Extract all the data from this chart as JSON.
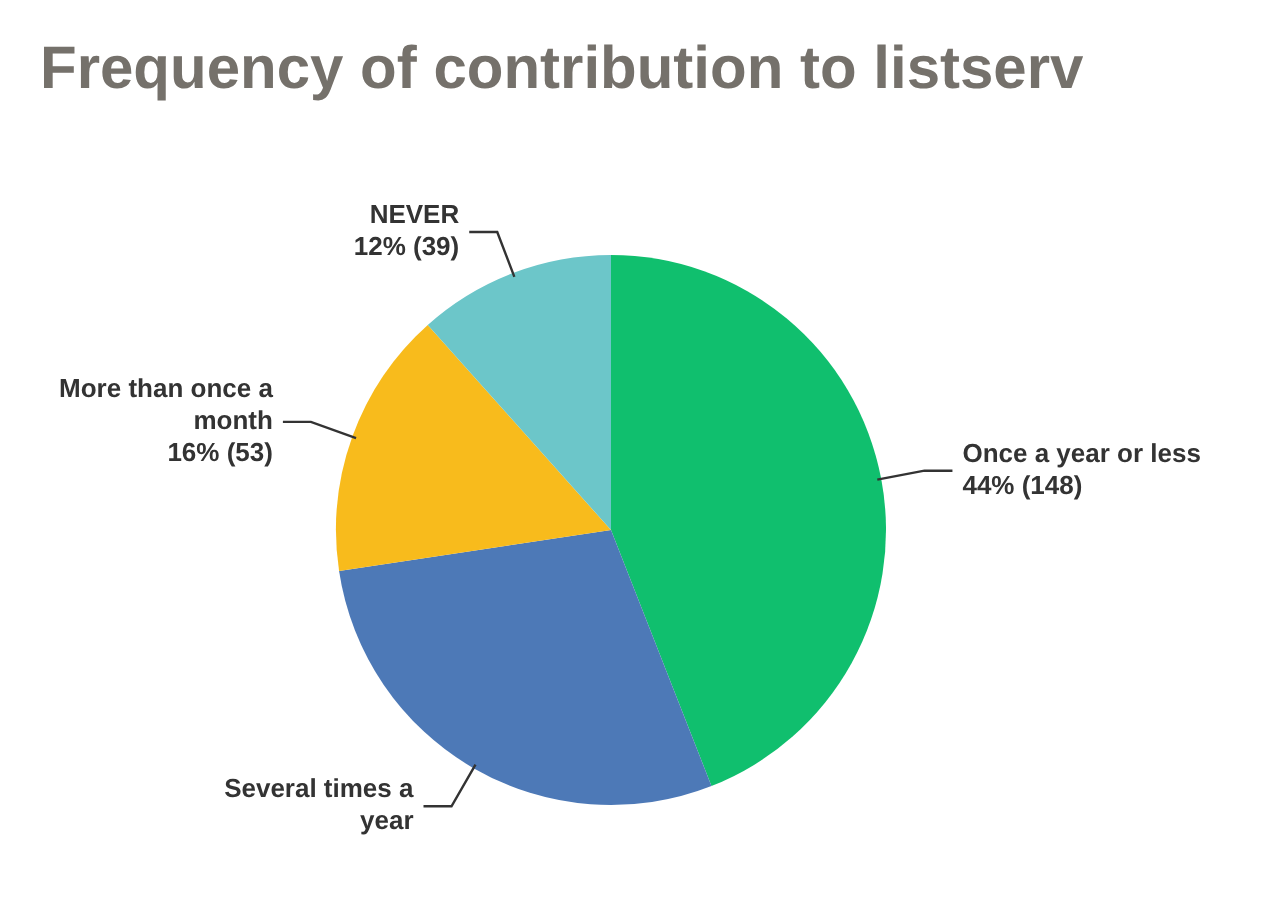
{
  "chart_data": {
    "type": "pie",
    "title": "Frequency of contribution to listserv",
    "categories": [
      "Once a year or less",
      "Several times a year",
      "More than once a month",
      "NEVER"
    ],
    "values": [
      148,
      96,
      53,
      39
    ],
    "value_labels": [
      "44% (148)",
      null,
      "16% (53)",
      "12% (39)"
    ],
    "colors": [
      "#10bf6e",
      "#4d79b7",
      "#f8bb1c",
      "#6cc6c9"
    ],
    "legend": false
  }
}
